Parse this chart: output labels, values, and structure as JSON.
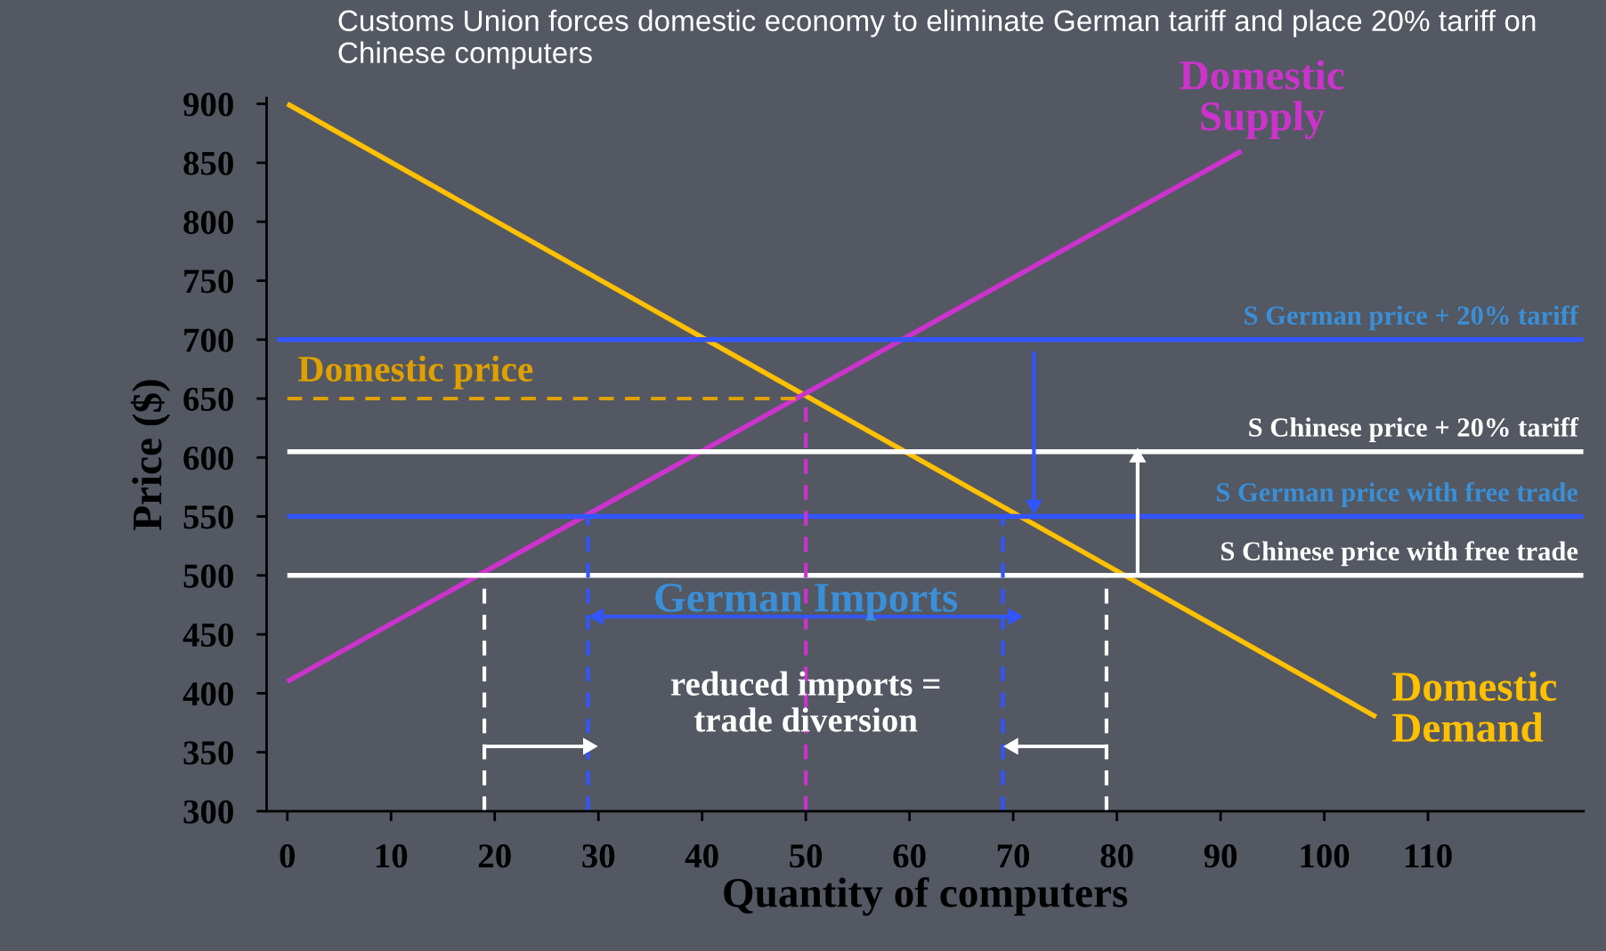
{
  "chart_data": {
    "type": "line",
    "title": "Customs Union forces domestic economy to eliminate German tariff and place 20% tariff on Chinese computers",
    "xlabel": "Quantity of computers",
    "ylabel": "Price ($)",
    "xlim": [
      -2,
      125
    ],
    "xticks": [
      0,
      10,
      20,
      30,
      40,
      50,
      60,
      70,
      80,
      90,
      100,
      110
    ],
    "ylim": [
      300,
      905
    ],
    "yticks": [
      300,
      350,
      400,
      450,
      500,
      550,
      600,
      650,
      700,
      750,
      800,
      850,
      900
    ],
    "grid": false,
    "legend": false,
    "line_style": "solid",
    "marker": "none",
    "series": [
      {
        "name": "Domestic\nDemand",
        "color": "#ffc000",
        "x": [
          0,
          105
        ],
        "values": [
          900,
          380
        ]
      },
      {
        "name": "Domestic\nSupply",
        "color": "#cc33cc",
        "x": [
          0,
          92
        ],
        "values": [
          410,
          860
        ]
      },
      {
        "name": "S German price + 20% tariff",
        "color": "#3355ff",
        "x": [
          -1,
          125
        ],
        "values": [
          700,
          700
        ]
      },
      {
        "name": "S Chinese price + 20% tariff",
        "color": "#ffffff",
        "x": [
          0,
          125
        ],
        "values": [
          605,
          605
        ]
      },
      {
        "name": "S German price with free trade",
        "color": "#3355ff",
        "x": [
          0,
          125
        ],
        "values": [
          550,
          550
        ]
      },
      {
        "name": "S Chinese price with free trade",
        "color": "#ffffff",
        "x": [
          0,
          125
        ],
        "values": [
          500,
          500
        ]
      },
      {
        "name": "Domestic price",
        "color": "#e0a000",
        "line_style": "dashed",
        "x": [
          0,
          50
        ],
        "values": [
          650,
          650
        ]
      },
      {
        "color": "#cc33cc",
        "line_style": "dashed",
        "x": [
          50,
          50
        ],
        "values": [
          300,
          650
        ]
      },
      {
        "color": "#3355ff",
        "line_style": "dashed",
        "x": [
          29,
          29
        ],
        "values": [
          300,
          550
        ]
      },
      {
        "color": "#3355ff",
        "line_style": "dashed",
        "x": [
          69,
          69
        ],
        "values": [
          300,
          550
        ]
      },
      {
        "color": "#ffffff",
        "line_style": "dashed",
        "x": [
          19,
          19
        ],
        "values": [
          300,
          500
        ]
      },
      {
        "color": "#ffffff",
        "line_style": "dashed",
        "x": [
          79,
          79
        ],
        "values": [
          300,
          500
        ]
      },
      {
        "color": "#3355ff",
        "marker": "triangle",
        "x": [
          72,
          72
        ],
        "values": [
          690,
          560
        ]
      },
      {
        "color": "#ffffff",
        "marker": "triangle",
        "x": [
          82,
          82
        ],
        "values": [
          500,
          600
        ]
      },
      {
        "color": "#3355ff",
        "marker": "triangle",
        "x": [
          30,
          50,
          70
        ],
        "values": [
          465,
          465,
          465
        ]
      },
      {
        "color": "#ffffff",
        "marker": "triangle",
        "x": [
          19,
          29
        ],
        "values": [
          355,
          355
        ]
      },
      {
        "color": "#ffffff",
        "marker": "triangle",
        "x": [
          79,
          70
        ],
        "values": [
          355,
          355
        ]
      }
    ],
    "annotations": [
      {
        "text": "German Imports",
        "x": 50,
        "y": 478
      },
      {
        "text": "reduced imports =\ntrade diversion",
        "x": 50,
        "y": 390
      }
    ]
  }
}
